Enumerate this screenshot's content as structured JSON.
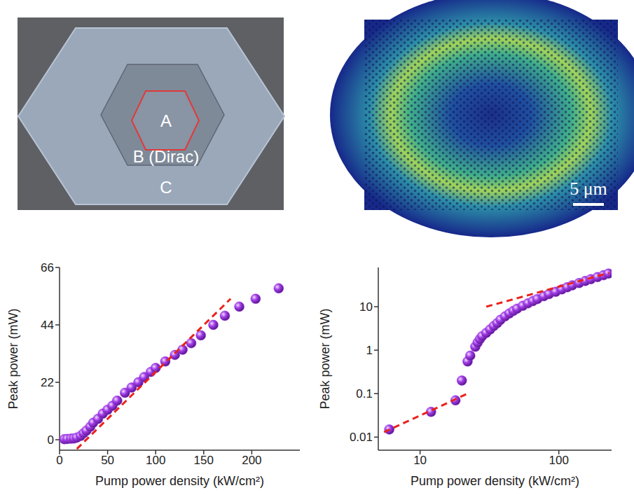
{
  "images": {
    "sem_labels": [
      "A",
      "B (Dirac)",
      "C"
    ],
    "scale_bar": "5 μm"
  },
  "chart_data": [
    {
      "type": "scatter",
      "x_label": "Pump power density (kW/cm²)",
      "y_label": "Peak power (mW)",
      "xlim": [
        0,
        250
      ],
      "xticks": [
        0,
        50,
        100,
        150,
        200
      ],
      "ylim": [
        -4,
        66
      ],
      "yticks": [
        0,
        22,
        44,
        66
      ],
      "series": [
        {
          "type": "scatter",
          "color": "#a23ee8",
          "marker": "circle",
          "x": [
            5,
            8,
            12,
            15,
            18,
            22,
            25,
            28,
            32,
            35,
            40,
            45,
            50,
            55,
            60,
            68,
            75,
            82,
            88,
            95,
            100,
            110,
            120,
            128,
            137,
            147,
            160,
            172,
            187,
            204,
            228
          ],
          "values": [
            0.2,
            0.3,
            0.4,
            0.5,
            0.8,
            1.5,
            2.5,
            3.5,
            5,
            6.5,
            8,
            10,
            11.5,
            13,
            15,
            18,
            20,
            22,
            24,
            26,
            27.5,
            30,
            32.5,
            34.5,
            37,
            40,
            44,
            47.5,
            51,
            54,
            58
          ]
        },
        {
          "type": "line",
          "color": "#e8231c",
          "line_style": "dashed",
          "x": [
            18,
            178
          ],
          "values": [
            -3.5,
            54
          ]
        }
      ]
    },
    {
      "type": "scatter",
      "log": true,
      "x_label": "Pump power density (kW/cm²)",
      "y_label": "Peak power (mW)",
      "xlim": [
        5,
        240
      ],
      "xticks": [
        10,
        100
      ],
      "ylim": [
        0.005,
        80
      ],
      "yticks": [
        0.01,
        0.1,
        1,
        10
      ],
      "series": [
        {
          "type": "scatter",
          "color": "#a23ee8",
          "marker": "circle",
          "x": [
            6,
            12,
            18,
            20,
            22,
            23,
            25,
            26,
            27,
            28,
            30,
            32,
            34,
            36,
            38,
            41,
            44,
            47,
            50,
            55,
            60,
            65,
            70,
            78,
            85,
            95,
            105,
            115,
            125,
            140,
            155,
            170,
            190,
            210,
            228
          ],
          "values": [
            0.015,
            0.038,
            0.07,
            0.2,
            0.55,
            0.75,
            1.2,
            1.5,
            1.8,
            2.1,
            2.5,
            3,
            3.6,
            4.2,
            5,
            6,
            7,
            8,
            9,
            10.5,
            12,
            13.5,
            15,
            17.5,
            19.5,
            22,
            25,
            28,
            31,
            35,
            39,
            43,
            48,
            53,
            58
          ]
        },
        {
          "type": "line",
          "color": "#e8231c",
          "line_style": "dashed",
          "x": [
            5.5,
            22
          ],
          "values": [
            0.013,
            0.1
          ]
        },
        {
          "type": "line",
          "color": "#e8231c",
          "line_style": "dashed",
          "x": [
            30,
            230
          ],
          "values": [
            10,
            60
          ]
        }
      ]
    }
  ]
}
